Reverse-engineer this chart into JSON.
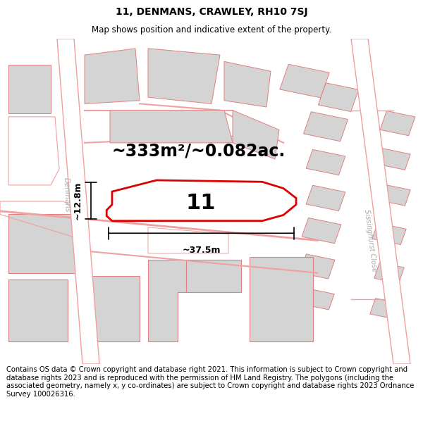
{
  "title": "11, DENMANS, CRAWLEY, RH10 7SJ",
  "subtitle": "Map shows position and indicative extent of the property.",
  "area_label": "~333m²/~0.082ac.",
  "plot_number": "11",
  "dim_width": "~37.5m",
  "dim_height": "~12.8m",
  "footer": "Contains OS data © Crown copyright and database right 2021. This information is subject to Crown copyright and database rights 2023 and is reproduced with the permission of HM Land Registry. The polygons (including the associated geometry, namely x, y co-ordinates) are subject to Crown copyright and database rights 2023 Ordnance Survey 100026316.",
  "bg_color": "#ffffff",
  "map_bg": "#ffffff",
  "light_red": "#f0a0a0",
  "gray_fill": "#d4d4d4",
  "red_outline": "#e08080",
  "red_main": "#dd0000",
  "title_fontsize": 10,
  "subtitle_fontsize": 8.5,
  "footer_fontsize": 7.2,
  "area_fontsize": 17,
  "number_fontsize": 22,
  "street_label_denmans": "Denmans",
  "street_label_sissinghurst": "Sissinghurst Close"
}
